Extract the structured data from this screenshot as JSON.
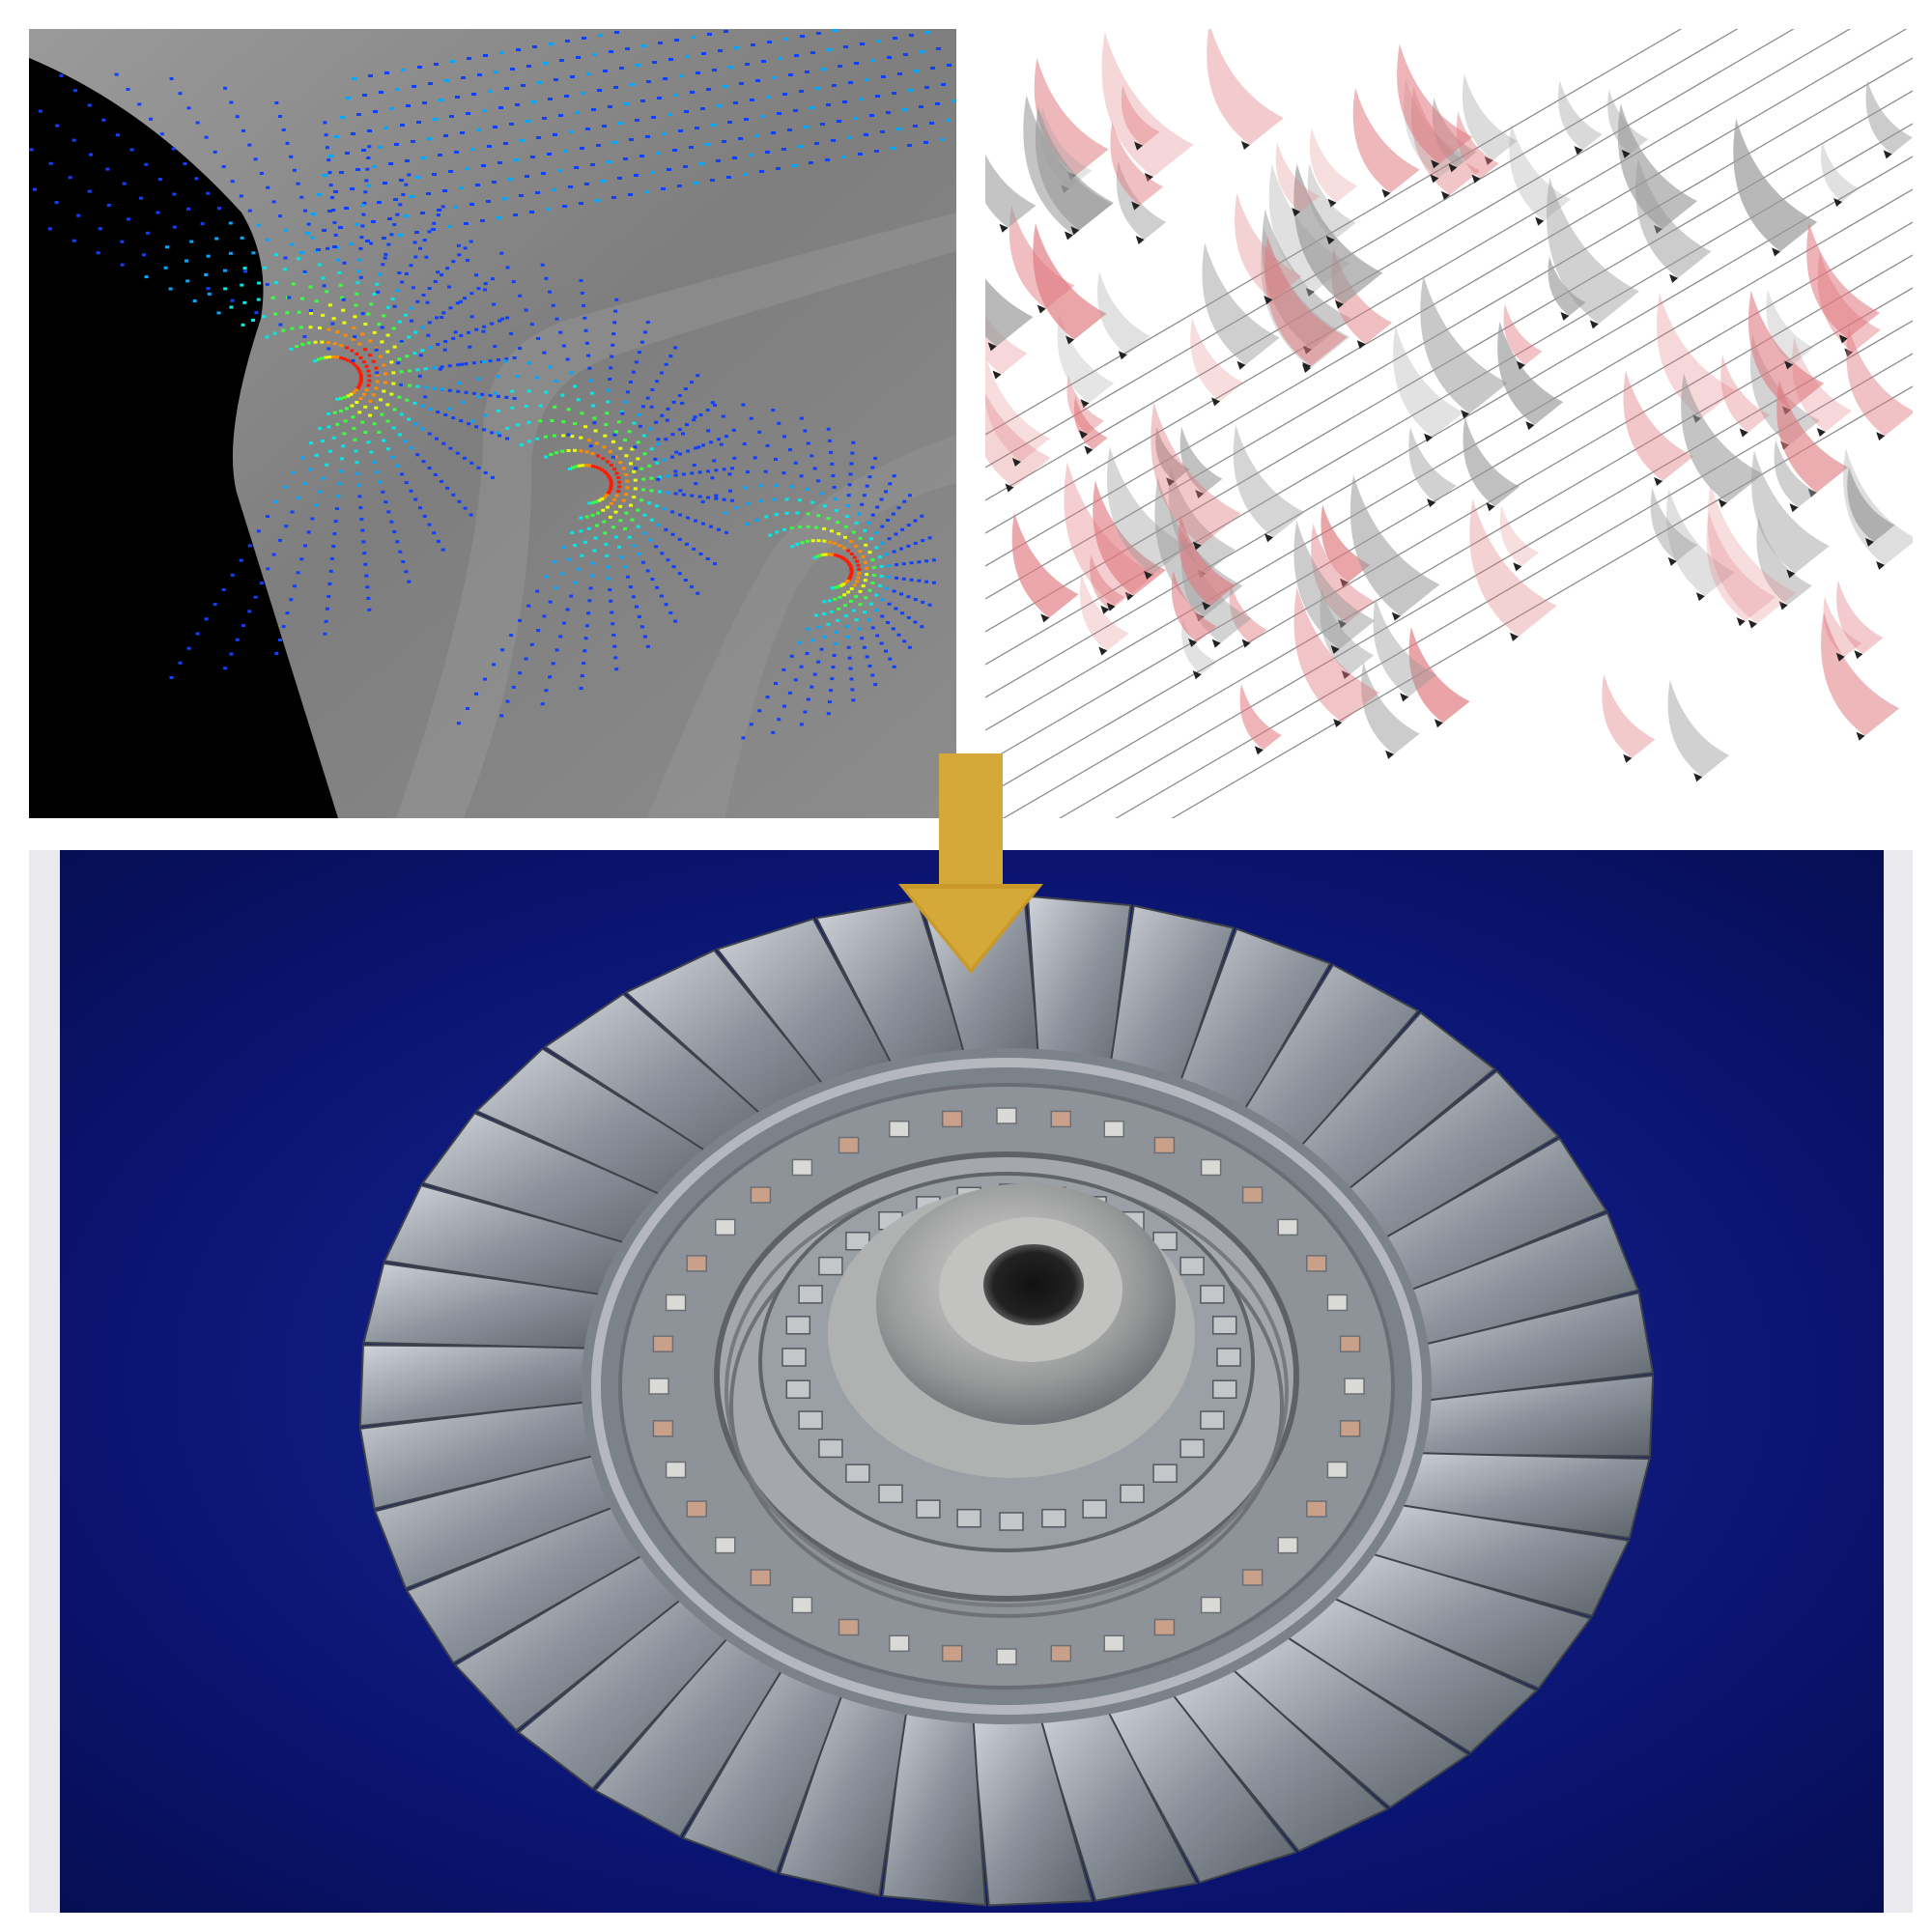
{
  "panels": {
    "cfd": {
      "kind": "cfd-surface-vector-plot"
    },
    "vectors": {
      "kind": "flow-vector-ribbon-plot"
    },
    "photo": {
      "kind": "turbine-wheel-photograph"
    }
  },
  "arrow": {
    "icon": "down-arrow-icon",
    "color": "#d4a93a"
  },
  "colors": {
    "cfd_surface": "#8a8a8a",
    "cfd_background": "#000000",
    "photo_background": "#0a1470",
    "ribbon_red": "#e07a80",
    "ribbon_grey": "#9a9a9a",
    "arrow_gold": "#d4a93a"
  }
}
